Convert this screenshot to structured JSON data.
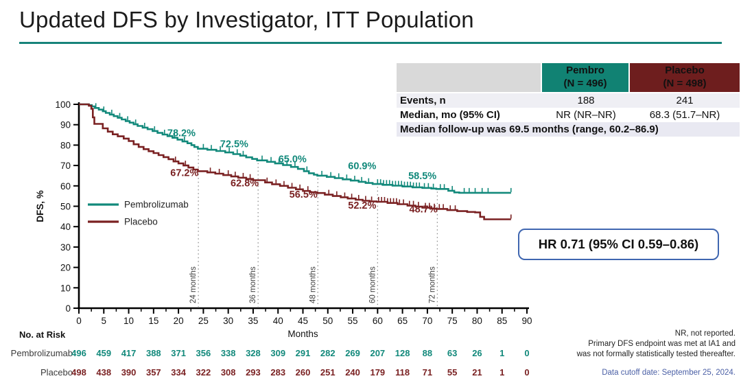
{
  "title": "Updated DFS by Investigator, ITT Population",
  "colors": {
    "teal": "#12897B",
    "dark_red": "#7A2122",
    "teal_header_bg": "#118273",
    "red_header_bg": "#6E1E1E",
    "title_rule": "#17837a",
    "hr_box_border": "#3F66B0",
    "note_text": "#5565AE",
    "cutoff_text": "#4A5FA5"
  },
  "summary_table": {
    "col_headers": [
      {
        "name": "",
        "n": ""
      },
      {
        "name": "Pembro",
        "n": "(N = 496)"
      },
      {
        "name": "Placebo",
        "n": "(N = 498)"
      }
    ],
    "rows": [
      {
        "label": "Events, n",
        "pembro": "188",
        "placebo": "241"
      },
      {
        "label": "Median, mo (95% CI)",
        "pembro": "NR (NR–NR)",
        "placebo": "68.3 (51.7–NR)"
      }
    ],
    "note": "Median follow-up was 69.5 months (range, 60.2–86.9)"
  },
  "hr_box": {
    "text": "HR 0.71 (95% CI 0.59–0.86)"
  },
  "footnotes": {
    "lines": [
      "NR, not reported.",
      "Primary DFS endpoint was met at IA1 and",
      "was not formally statistically tested thereafter."
    ],
    "cutoff": "Data cutoff date: September 25, 2024."
  },
  "chart_data": {
    "type": "line",
    "subtype": "kaplan-meier-step",
    "title": "",
    "xlabel": "Months",
    "ylabel": "DFS, %",
    "xlim": [
      0,
      90
    ],
    "xtick_step": 5,
    "ylim": [
      0,
      100
    ],
    "ytick_step": 10,
    "grid": false,
    "legend_position": "inside-left",
    "landmark_months": [
      24,
      36,
      48,
      60,
      72
    ],
    "landmark_line_labels": [
      "24 months",
      "36 months",
      "48 months",
      "60 months",
      "72 months"
    ],
    "series": [
      {
        "name": "Pembrolizumab",
        "color": "#12897B",
        "landmark_values": {
          "24": 78.2,
          "36": 72.5,
          "48": 65.0,
          "60": 60.9,
          "72": 58.5
        },
        "annotations": [
          {
            "text": "78.2%",
            "x": 20.6,
            "y": 84.3
          },
          {
            "text": "72.5%",
            "x": 31.2,
            "y": 79.0
          },
          {
            "text": "65.0%",
            "x": 42.9,
            "y": 71.5
          },
          {
            "text": "60.9%",
            "x": 56.9,
            "y": 68.2
          },
          {
            "text": "58.5%",
            "x": 69.0,
            "y": 63.3
          }
        ],
        "steps": [
          [
            0,
            100
          ],
          [
            2.0,
            99.6
          ],
          [
            2.6,
            99.0
          ],
          [
            3.2,
            98.2
          ],
          [
            4.0,
            97.4
          ],
          [
            4.8,
            96.6
          ],
          [
            5.4,
            95.8
          ],
          [
            6.2,
            95.0
          ],
          [
            7.0,
            94.2
          ],
          [
            7.8,
            93.4
          ],
          [
            8.6,
            92.6
          ],
          [
            9.4,
            91.8
          ],
          [
            10.2,
            91.0
          ],
          [
            11.0,
            90.2
          ],
          [
            11.8,
            89.4
          ],
          [
            12.8,
            88.6
          ],
          [
            13.8,
            87.8
          ],
          [
            14.8,
            86.9
          ],
          [
            15.8,
            86.0
          ],
          [
            16.8,
            85.2
          ],
          [
            17.8,
            84.4
          ],
          [
            18.8,
            83.6
          ],
          [
            19.8,
            82.7
          ],
          [
            20.8,
            81.8
          ],
          [
            21.8,
            80.9
          ],
          [
            22.6,
            80.0
          ],
          [
            23.2,
            79.1
          ],
          [
            23.9,
            78.2
          ],
          [
            25.8,
            77.7
          ],
          [
            27.6,
            77.1
          ],
          [
            29.4,
            76.4
          ],
          [
            31.0,
            75.6
          ],
          [
            32.4,
            74.8
          ],
          [
            33.6,
            74.0
          ],
          [
            34.8,
            73.2
          ],
          [
            35.8,
            72.5
          ],
          [
            37.8,
            71.8
          ],
          [
            39.4,
            71.0
          ],
          [
            41.0,
            70.2
          ],
          [
            42.6,
            69.3
          ],
          [
            44.0,
            68.3
          ],
          [
            45.2,
            67.2
          ],
          [
            46.2,
            66.2
          ],
          [
            47.2,
            65.5
          ],
          [
            47.9,
            65.0
          ],
          [
            49.8,
            64.4
          ],
          [
            51.4,
            63.8
          ],
          [
            53.0,
            63.2
          ],
          [
            54.6,
            62.6
          ],
          [
            56.2,
            62.0
          ],
          [
            57.6,
            61.4
          ],
          [
            59.0,
            60.9
          ],
          [
            61.0,
            60.5
          ],
          [
            63.0,
            60.1
          ],
          [
            65.0,
            59.7
          ],
          [
            67.0,
            59.3
          ],
          [
            69.0,
            59.0
          ],
          [
            70.8,
            58.7
          ],
          [
            71.8,
            58.5
          ],
          [
            74.2,
            57.6
          ],
          [
            75.4,
            56.8
          ],
          [
            76.4,
            56.6
          ],
          [
            86.8,
            56.6
          ]
        ],
        "censor_months": [
          3.4,
          5.0,
          6.6,
          8.2,
          9.8,
          11.4,
          13.2,
          15.2,
          17.2,
          19.2,
          21.2,
          25.0,
          26.6,
          28.4,
          30.2,
          31.8,
          33.0,
          36.8,
          38.6,
          40.2,
          41.8,
          43.4,
          45.8,
          48.8,
          50.6,
          52.2,
          53.8,
          55.4,
          56.8,
          58.2,
          60.0,
          60.6,
          61.2,
          61.8,
          62.4,
          63.0,
          63.6,
          64.2,
          64.8,
          65.4,
          66.0,
          66.6,
          67.2,
          67.8,
          68.4,
          69.4,
          70.2,
          71.2,
          72.6,
          73.4,
          75.0,
          77.4,
          78.4,
          79.6,
          81.0,
          82.2,
          86.8
        ]
      },
      {
        "name": "Placebo",
        "color": "#7A2122",
        "landmark_values": {
          "24": 67.2,
          "36": 62.8,
          "48": 56.5,
          "60": 52.2,
          "72": 48.7
        },
        "annotations": [
          {
            "text": "67.2%",
            "x": 21.2,
            "y": 64.8
          },
          {
            "text": "62.8%",
            "x": 33.3,
            "y": 59.7
          },
          {
            "text": "56.5%",
            "x": 45.1,
            "y": 54.2
          },
          {
            "text": "52.2%",
            "x": 56.9,
            "y": 48.8
          },
          {
            "text": "48.7%",
            "x": 69.2,
            "y": 47.0
          }
        ],
        "steps": [
          [
            0,
            100
          ],
          [
            2.0,
            99.3
          ],
          [
            2.5,
            97.8
          ],
          [
            2.8,
            93.6
          ],
          [
            3.1,
            90.4
          ],
          [
            4.8,
            88.2
          ],
          [
            5.8,
            86.6
          ],
          [
            6.8,
            85.3
          ],
          [
            7.8,
            84.3
          ],
          [
            9.0,
            83.2
          ],
          [
            10.0,
            82.0
          ],
          [
            11.0,
            80.4
          ],
          [
            12.0,
            79.1
          ],
          [
            13.0,
            78.0
          ],
          [
            14.0,
            77.0
          ],
          [
            15.0,
            76.1
          ],
          [
            16.0,
            75.1
          ],
          [
            17.0,
            74.1
          ],
          [
            18.0,
            73.1
          ],
          [
            19.0,
            72.0
          ],
          [
            20.0,
            71.0
          ],
          [
            21.0,
            70.0
          ],
          [
            22.0,
            69.0
          ],
          [
            23.0,
            68.0
          ],
          [
            23.9,
            67.2
          ],
          [
            25.8,
            66.6
          ],
          [
            27.4,
            66.0
          ],
          [
            29.0,
            65.3
          ],
          [
            30.6,
            64.6
          ],
          [
            32.0,
            64.0
          ],
          [
            33.6,
            63.4
          ],
          [
            35.0,
            62.8
          ],
          [
            37.4,
            61.7
          ],
          [
            38.8,
            60.8
          ],
          [
            40.4,
            60.0
          ],
          [
            42.0,
            59.1
          ],
          [
            43.6,
            58.3
          ],
          [
            45.0,
            57.5
          ],
          [
            46.4,
            56.9
          ],
          [
            47.9,
            56.5
          ],
          [
            49.4,
            55.7
          ],
          [
            51.0,
            55.0
          ],
          [
            52.6,
            54.4
          ],
          [
            54.0,
            53.8
          ],
          [
            55.6,
            53.2
          ],
          [
            57.0,
            52.7
          ],
          [
            58.4,
            52.4
          ],
          [
            59.8,
            52.2
          ],
          [
            62.0,
            51.6
          ],
          [
            64.0,
            51.0
          ],
          [
            66.0,
            50.3
          ],
          [
            67.6,
            49.8
          ],
          [
            69.0,
            49.3
          ],
          [
            70.8,
            48.9
          ],
          [
            71.8,
            48.7
          ],
          [
            74.0,
            48.1
          ],
          [
            76.0,
            47.6
          ],
          [
            78.0,
            47.2
          ],
          [
            79.6,
            47.0
          ],
          [
            80.6,
            44.8
          ],
          [
            81.4,
            43.6
          ],
          [
            86.8,
            43.6
          ]
        ],
        "censor_months": [
          19.4,
          21.4,
          26.4,
          28.2,
          30.0,
          31.4,
          33.0,
          34.4,
          37.8,
          39.6,
          41.2,
          42.8,
          44.4,
          46.0,
          50.2,
          51.8,
          53.4,
          54.8,
          56.2,
          57.6,
          58.8,
          60.2,
          60.8,
          61.4,
          62.0,
          62.6,
          63.2,
          63.8,
          64.4,
          65.2,
          66.4,
          67.2,
          68.2,
          69.6,
          70.4,
          71.4,
          72.4,
          73.2,
          74.6,
          75.6,
          86.8
        ]
      }
    ],
    "no_at_risk": {
      "label": "No. at Risk",
      "timepoints": [
        0,
        5,
        10,
        15,
        20,
        25,
        30,
        35,
        40,
        45,
        50,
        55,
        60,
        65,
        70,
        75,
        80,
        85,
        90
      ],
      "rows": [
        {
          "name": "Pembrolizumab",
          "counts": [
            496,
            459,
            417,
            388,
            371,
            356,
            338,
            328,
            309,
            291,
            282,
            269,
            207,
            128,
            88,
            63,
            26,
            1,
            0
          ]
        },
        {
          "name": "Placebo",
          "counts": [
            498,
            438,
            390,
            357,
            334,
            322,
            308,
            293,
            283,
            260,
            251,
            240,
            179,
            118,
            71,
            55,
            21,
            1,
            0
          ]
        }
      ]
    }
  }
}
